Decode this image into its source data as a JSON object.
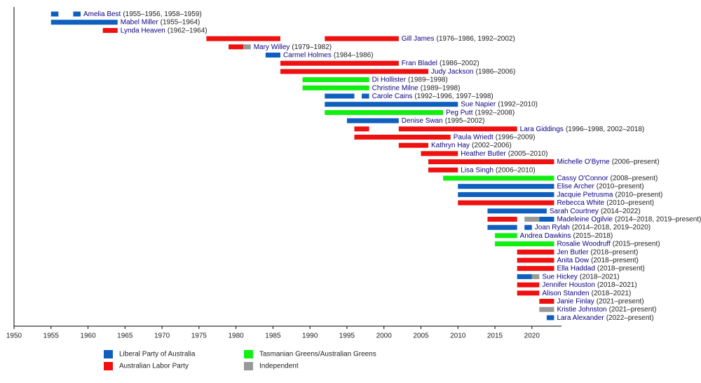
{
  "chart_data": {
    "type": "timeline",
    "xlim": [
      1950,
      2024
    ],
    "xticks": [
      1950,
      1955,
      1960,
      1965,
      1970,
      1975,
      1980,
      1985,
      1990,
      1995,
      2000,
      2005,
      2010,
      2015,
      2020
    ],
    "legend": [
      {
        "name": "Liberal Party of Australia",
        "color": "#0f5fbf"
      },
      {
        "name": "Australian Labor Party",
        "color": "#ef1010"
      },
      {
        "name": "Tasmanian Greens/Australian Greens",
        "color": "#10ef10"
      },
      {
        "name": "Independent",
        "color": "#999999"
      }
    ],
    "rows": [
      {
        "name": "Amelia Best",
        "term": "(1955–1956, 1958–1959)",
        "segments": [
          {
            "start": 1955,
            "end": 1956,
            "color": "#0f5fbf"
          },
          {
            "start": 1958,
            "end": 1959,
            "color": "#0f5fbf"
          }
        ]
      },
      {
        "name": "Mabel Miller",
        "term": "(1955–1964)",
        "segments": [
          {
            "start": 1955,
            "end": 1964,
            "color": "#0f5fbf"
          }
        ]
      },
      {
        "name": "Lynda Heaven",
        "term": "(1962–1964)",
        "segments": [
          {
            "start": 1962,
            "end": 1964,
            "color": "#ef1010"
          }
        ]
      },
      {
        "name": "Gill James",
        "term": "(1976–1986, 1992–2002)",
        "segments": [
          {
            "start": 1976,
            "end": 1986,
            "color": "#ef1010"
          },
          {
            "start": 1992,
            "end": 2002,
            "color": "#ef1010"
          }
        ]
      },
      {
        "name": "Mary Willey",
        "term": "(1979–1982)",
        "segments": [
          {
            "start": 1979,
            "end": 1981,
            "color": "#ef1010"
          },
          {
            "start": 1981,
            "end": 1982,
            "color": "#999999"
          }
        ]
      },
      {
        "name": "Carmel Holmes",
        "term": "(1984–1986)",
        "segments": [
          {
            "start": 1984,
            "end": 1986,
            "color": "#0f5fbf"
          }
        ]
      },
      {
        "name": "Fran Bladel",
        "term": "(1986–2002)",
        "segments": [
          {
            "start": 1986,
            "end": 2002,
            "color": "#ef1010"
          }
        ]
      },
      {
        "name": "Judy Jackson",
        "term": "(1986–2006)",
        "segments": [
          {
            "start": 1986,
            "end": 2006,
            "color": "#ef1010"
          }
        ]
      },
      {
        "name": "Di Hollister",
        "term": "(1989–1998)",
        "segments": [
          {
            "start": 1989,
            "end": 1998,
            "color": "#10ef10"
          }
        ]
      },
      {
        "name": "Christine Milne",
        "term": "(1989–1998)",
        "segments": [
          {
            "start": 1989,
            "end": 1998,
            "color": "#10ef10"
          }
        ]
      },
      {
        "name": "Carole Cains",
        "term": "(1992–1996, 1997–1998)",
        "segments": [
          {
            "start": 1992,
            "end": 1996,
            "color": "#0f5fbf"
          },
          {
            "start": 1997,
            "end": 1998,
            "color": "#0f5fbf"
          }
        ]
      },
      {
        "name": "Sue Napier",
        "term": "(1992–2010)",
        "segments": [
          {
            "start": 1992,
            "end": 2010,
            "color": "#0f5fbf"
          }
        ]
      },
      {
        "name": "Peg Putt",
        "term": "(1992–2008)",
        "segments": [
          {
            "start": 1992,
            "end": 2008,
            "color": "#10ef10"
          }
        ]
      },
      {
        "name": "Denise Swan",
        "term": "(1995–2002)",
        "segments": [
          {
            "start": 1995,
            "end": 2002,
            "color": "#0f5fbf"
          }
        ]
      },
      {
        "name": "Lara Giddings",
        "term": "(1996–1998, 2002–2018)",
        "segments": [
          {
            "start": 1996,
            "end": 1998,
            "color": "#ef1010"
          },
          {
            "start": 2002,
            "end": 2018,
            "color": "#ef1010"
          }
        ]
      },
      {
        "name": "Paula Wriedt",
        "term": "(1996–2009)",
        "segments": [
          {
            "start": 1996,
            "end": 2009,
            "color": "#ef1010"
          }
        ]
      },
      {
        "name": "Kathryn Hay",
        "term": "(2002–2006)",
        "segments": [
          {
            "start": 2002,
            "end": 2006,
            "color": "#ef1010"
          }
        ]
      },
      {
        "name": "Heather Butler",
        "term": "(2005–2010)",
        "segments": [
          {
            "start": 2005,
            "end": 2010,
            "color": "#ef1010"
          }
        ]
      },
      {
        "name": "Michelle O'Byrne",
        "term": "(2006–present)",
        "segments": [
          {
            "start": 2006,
            "end": 2023,
            "color": "#ef1010"
          }
        ]
      },
      {
        "name": "Lisa Singh",
        "term": "(2006–2010)",
        "segments": [
          {
            "start": 2006,
            "end": 2010,
            "color": "#ef1010"
          }
        ]
      },
      {
        "name": "Cassy O'Connor",
        "term": "(2008–present)",
        "segments": [
          {
            "start": 2008,
            "end": 2023,
            "color": "#10ef10"
          }
        ]
      },
      {
        "name": "Elise Archer",
        "term": "(2010–present)",
        "segments": [
          {
            "start": 2010,
            "end": 2023,
            "color": "#0f5fbf"
          }
        ]
      },
      {
        "name": "Jacquie Petrusma",
        "term": "(2010–present)",
        "segments": [
          {
            "start": 2010,
            "end": 2023,
            "color": "#0f5fbf"
          }
        ]
      },
      {
        "name": "Rebecca White",
        "term": "(2010–present)",
        "segments": [
          {
            "start": 2010,
            "end": 2023,
            "color": "#ef1010"
          }
        ]
      },
      {
        "name": "Sarah Courtney",
        "term": "(2014–2022)",
        "segments": [
          {
            "start": 2014,
            "end": 2022,
            "color": "#0f5fbf"
          }
        ]
      },
      {
        "name": "Madeleine Ogilvie",
        "term": "(2014–2018, 2019–present)",
        "segments": [
          {
            "start": 2014,
            "end": 2018,
            "color": "#ef1010"
          },
          {
            "start": 2019,
            "end": 2021,
            "color": "#999999"
          },
          {
            "start": 2021,
            "end": 2023,
            "color": "#0f5fbf"
          }
        ]
      },
      {
        "name": "Joan Rylah",
        "term": "(2014–2018, 2019–2020)",
        "segments": [
          {
            "start": 2014,
            "end": 2018,
            "color": "#0f5fbf"
          },
          {
            "start": 2019,
            "end": 2020,
            "color": "#0f5fbf"
          }
        ]
      },
      {
        "name": "Andrea Dawkins",
        "term": "(2015–2018)",
        "segments": [
          {
            "start": 2015,
            "end": 2018,
            "color": "#10ef10"
          }
        ]
      },
      {
        "name": "Rosalie Woodruff",
        "term": "(2015–present)",
        "segments": [
          {
            "start": 2015,
            "end": 2023,
            "color": "#10ef10"
          }
        ]
      },
      {
        "name": "Jen Butler",
        "term": "(2018–present)",
        "segments": [
          {
            "start": 2018,
            "end": 2023,
            "color": "#ef1010"
          }
        ]
      },
      {
        "name": "Anita Dow",
        "term": "(2018–present)",
        "segments": [
          {
            "start": 2018,
            "end": 2023,
            "color": "#ef1010"
          }
        ]
      },
      {
        "name": "Ella Haddad",
        "term": "(2018–present)",
        "segments": [
          {
            "start": 2018,
            "end": 2023,
            "color": "#ef1010"
          }
        ]
      },
      {
        "name": "Sue Hickey",
        "term": "(2018–2021)",
        "segments": [
          {
            "start": 2018,
            "end": 2020,
            "color": "#0f5fbf"
          },
          {
            "start": 2020,
            "end": 2021,
            "color": "#999999"
          }
        ]
      },
      {
        "name": "Jennifer Houston",
        "term": "(2018–2021)",
        "segments": [
          {
            "start": 2018,
            "end": 2021,
            "color": "#ef1010"
          }
        ]
      },
      {
        "name": "Alison Standen",
        "term": "(2018–2021)",
        "segments": [
          {
            "start": 2018,
            "end": 2021,
            "color": "#ef1010"
          }
        ]
      },
      {
        "name": "Janie Finlay",
        "term": "(2021–present)",
        "segments": [
          {
            "start": 2021,
            "end": 2023,
            "color": "#ef1010"
          }
        ]
      },
      {
        "name": "Kristie Johnston",
        "term": "(2021–present)",
        "segments": [
          {
            "start": 2021,
            "end": 2023,
            "color": "#999999"
          }
        ]
      },
      {
        "name": "Lara Alexander",
        "term": "(2022–present)",
        "segments": [
          {
            "start": 2022,
            "end": 2023,
            "color": "#0f5fbf"
          }
        ]
      }
    ]
  }
}
